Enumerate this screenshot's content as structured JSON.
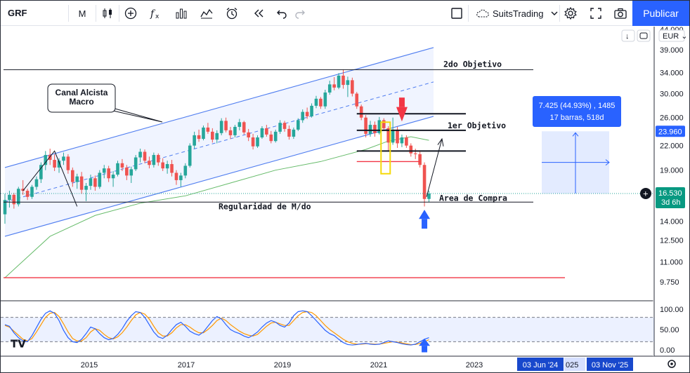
{
  "toolbar": {
    "symbol": "GRF",
    "interval": "M",
    "brand": "SuitsTrading",
    "publish_label": "Publicar"
  },
  "price_axis": {
    "currency": "EUR",
    "ticks": [
      "44.000",
      "39.000",
      "34.000",
      "30.000",
      "26.000",
      "22.000",
      "19.000",
      "14.000",
      "12.500",
      "11.000",
      "9.750"
    ],
    "current_price": "16.530",
    "countdown": "3d 6h",
    "target_price": "23.960"
  },
  "osc_axis": {
    "ticks": [
      "100.00",
      "50.00",
      "0.00"
    ]
  },
  "time_axis": {
    "ticks": [
      "2015",
      "2017",
      "2019",
      "2021",
      "2023"
    ],
    "range_start": "03 Jun '24",
    "range_partial": "025",
    "range_end": "03 Nov '25"
  },
  "annotations": {
    "callout_line1": "Canal Alcista",
    "callout_line2": "Macro",
    "second_target": "2do Objetivo",
    "first_target": "1er Objetivo",
    "buy_area": "Area de Compra",
    "regularity": "Regularidad de M/do",
    "measure_line1": "7.425 (44.93%) , 1485",
    "measure_line2": "17 barras, 518d"
  },
  "colors": {
    "up": "#26a69a",
    "down": "#ef5350",
    "channel": "#4f7df0",
    "ma": "#66bb6a",
    "stoch_k": "#2962ff",
    "stoch_d": "#ff9800",
    "accent": "#2962ff"
  },
  "chart_data": {
    "type": "candlestick",
    "candles": [
      [
        14.6,
        16.5,
        13.8,
        15.9
      ],
      [
        15.9,
        16.8,
        15.2,
        16.4
      ],
      [
        16.4,
        16.6,
        15.1,
        15.5
      ],
      [
        15.5,
        17.2,
        15.3,
        17.0
      ],
      [
        17.0,
        17.9,
        16.4,
        16.8
      ],
      [
        16.8,
        17.0,
        15.9,
        16.2
      ],
      [
        16.2,
        17.4,
        16.0,
        17.2
      ],
      [
        17.2,
        18.3,
        16.9,
        18.0
      ],
      [
        18.0,
        19.9,
        17.6,
        19.6
      ],
      [
        19.6,
        21.3,
        19.0,
        20.8
      ],
      [
        20.8,
        21.6,
        19.6,
        20.2
      ],
      [
        20.2,
        20.9,
        18.9,
        19.3
      ],
      [
        19.3,
        20.4,
        18.7,
        20.1
      ],
      [
        20.1,
        21.1,
        19.6,
        20.6
      ],
      [
        20.6,
        20.9,
        18.6,
        19.0
      ],
      [
        19.0,
        19.3,
        17.2,
        17.7
      ],
      [
        17.7,
        18.6,
        17.0,
        18.3
      ],
      [
        18.3,
        18.8,
        16.5,
        16.9
      ],
      [
        16.9,
        17.6,
        15.8,
        17.3
      ],
      [
        17.3,
        18.5,
        16.9,
        18.1
      ],
      [
        18.1,
        18.4,
        16.8,
        17.2
      ],
      [
        17.2,
        19.0,
        17.0,
        18.7
      ],
      [
        18.7,
        19.6,
        18.1,
        19.2
      ],
      [
        19.2,
        19.5,
        17.7,
        18.1
      ],
      [
        18.1,
        18.9,
        17.2,
        18.5
      ],
      [
        18.5,
        20.1,
        18.3,
        19.8
      ],
      [
        19.8,
        20.3,
        18.9,
        19.3
      ],
      [
        19.3,
        19.6,
        17.9,
        18.4
      ],
      [
        18.4,
        19.4,
        17.6,
        19.1
      ],
      [
        19.1,
        20.8,
        18.9,
        20.5
      ],
      [
        20.5,
        21.6,
        19.9,
        21.2
      ],
      [
        21.2,
        21.5,
        19.8,
        20.1
      ],
      [
        20.1,
        20.6,
        19.2,
        19.6
      ],
      [
        19.6,
        21.1,
        19.3,
        20.8
      ],
      [
        20.8,
        21.0,
        19.5,
        19.9
      ],
      [
        19.9,
        20.4,
        18.9,
        19.2
      ],
      [
        19.2,
        20.1,
        18.6,
        19.7
      ],
      [
        19.7,
        20.2,
        18.3,
        18.7
      ],
      [
        18.7,
        19.0,
        17.4,
        17.9
      ],
      [
        17.9,
        18.7,
        17.2,
        18.4
      ],
      [
        18.4,
        19.8,
        18.1,
        19.5
      ],
      [
        19.5,
        22.3,
        19.3,
        22.0
      ],
      [
        22.0,
        23.9,
        21.6,
        23.4
      ],
      [
        23.4,
        24.2,
        22.5,
        22.9
      ],
      [
        22.9,
        24.8,
        22.7,
        24.5
      ],
      [
        24.5,
        25.2,
        23.6,
        23.9
      ],
      [
        23.9,
        24.4,
        22.4,
        22.8
      ],
      [
        22.8,
        24.1,
        22.3,
        23.7
      ],
      [
        23.7,
        25.9,
        23.4,
        25.5
      ],
      [
        25.5,
        26.0,
        23.8,
        24.1
      ],
      [
        24.1,
        24.6,
        22.9,
        23.4
      ],
      [
        23.4,
        24.9,
        23.1,
        24.6
      ],
      [
        24.6,
        25.8,
        24.1,
        25.3
      ],
      [
        25.3,
        25.5,
        23.5,
        23.8
      ],
      [
        23.8,
        24.3,
        22.6,
        23.1
      ],
      [
        23.1,
        23.6,
        21.5,
        21.9
      ],
      [
        21.9,
        23.4,
        21.7,
        23.1
      ],
      [
        23.1,
        24.7,
        22.9,
        24.4
      ],
      [
        24.4,
        24.9,
        23.2,
        23.5
      ],
      [
        23.5,
        24.0,
        22.3,
        22.6
      ],
      [
        22.6,
        24.2,
        22.4,
        23.9
      ],
      [
        23.9,
        25.6,
        23.6,
        25.2
      ],
      [
        25.2,
        25.5,
        23.9,
        24.3
      ],
      [
        24.3,
        24.8,
        22.8,
        23.2
      ],
      [
        23.2,
        24.5,
        22.9,
        24.2
      ],
      [
        24.2,
        25.9,
        24.0,
        25.6
      ],
      [
        25.6,
        27.3,
        25.2,
        26.9
      ],
      [
        26.9,
        27.6,
        25.8,
        26.2
      ],
      [
        26.2,
        28.3,
        26.0,
        27.9
      ],
      [
        27.9,
        29.6,
        27.5,
        29.1
      ],
      [
        29.1,
        29.4,
        27.4,
        27.8
      ],
      [
        27.8,
        30.7,
        27.4,
        30.2
      ],
      [
        30.2,
        32.4,
        29.8,
        31.7
      ],
      [
        31.7,
        33.1,
        30.6,
        31.1
      ],
      [
        31.1,
        33.9,
        30.8,
        33.4
      ],
      [
        33.4,
        34.6,
        30.9,
        31.6
      ],
      [
        31.6,
        33.2,
        29.4,
        32.5
      ],
      [
        32.5,
        33.0,
        29.5,
        30.0
      ],
      [
        30.0,
        30.3,
        27.4,
        27.8
      ],
      [
        27.8,
        28.1,
        25.6,
        26.0
      ],
      [
        26.0,
        26.4,
        23.1,
        23.6
      ],
      [
        23.6,
        25.5,
        23.2,
        24.9
      ],
      [
        24.9,
        25.4,
        23.2,
        23.7
      ],
      [
        23.7,
        26.1,
        23.5,
        25.6
      ],
      [
        25.6,
        25.9,
        24.0,
        24.4
      ],
      [
        24.4,
        24.7,
        21.2,
        22.4
      ],
      [
        22.4,
        26.0,
        22.1,
        24.2
      ],
      [
        24.2,
        24.6,
        21.7,
        22.3
      ],
      [
        22.3,
        23.5,
        21.8,
        23.1
      ],
      [
        23.1,
        23.4,
        21.7,
        22.0
      ],
      [
        22.0,
        22.3,
        20.6,
        21.0
      ],
      [
        21.0,
        21.6,
        20.3,
        20.9
      ],
      [
        20.9,
        21.2,
        19.3,
        19.6
      ],
      [
        19.6,
        19.9,
        15.3,
        16.0
      ],
      [
        16.0,
        16.8,
        15.7,
        16.53
      ]
    ],
    "ma": [
      {
        "i": 0,
        "v": 10.0
      },
      {
        "i": 10,
        "v": 12.8
      },
      {
        "i": 20,
        "v": 14.5
      },
      {
        "i": 30,
        "v": 15.6
      },
      {
        "i": 40,
        "v": 16.3
      },
      {
        "i": 50,
        "v": 17.6
      },
      {
        "i": 60,
        "v": 19.0
      },
      {
        "i": 70,
        "v": 20.0
      },
      {
        "i": 80,
        "v": 21.5
      },
      {
        "i": 85,
        "v": 22.6
      },
      {
        "i": 90,
        "v": 23.2
      },
      {
        "i": 94,
        "v": 22.7
      }
    ],
    "stoch_k": [
      62,
      58,
      42,
      30,
      22,
      20,
      35,
      55,
      75,
      90,
      96,
      90,
      72,
      48,
      30,
      20,
      18,
      26,
      40,
      56,
      52,
      40,
      30,
      25,
      28,
      38,
      52,
      70,
      84,
      94,
      92,
      80,
      62,
      44,
      32,
      28,
      36,
      50,
      62,
      68,
      58,
      46,
      40,
      36,
      44,
      58,
      72,
      82,
      76,
      62,
      50,
      44,
      40,
      34,
      30,
      36,
      44,
      56,
      66,
      72,
      68,
      60,
      56,
      66,
      84,
      94,
      96,
      94,
      84,
      72,
      60,
      48,
      40,
      35,
      26,
      18,
      13,
      12,
      13,
      15,
      16,
      14,
      13,
      14,
      18,
      22,
      20,
      18,
      15,
      13,
      12,
      14,
      20,
      26,
      30
    ],
    "stoch_d": [
      60,
      56,
      46,
      36,
      26,
      22,
      28,
      44,
      62,
      80,
      90,
      92,
      82,
      64,
      44,
      28,
      22,
      22,
      30,
      44,
      52,
      48,
      38,
      30,
      27,
      32,
      42,
      56,
      72,
      86,
      92,
      88,
      76,
      58,
      42,
      34,
      34,
      42,
      54,
      62,
      62,
      56,
      48,
      42,
      42,
      50,
      60,
      72,
      78,
      72,
      62,
      54,
      46,
      40,
      36,
      34,
      38,
      48,
      58,
      66,
      68,
      64,
      60,
      60,
      72,
      84,
      92,
      94,
      92,
      84,
      72,
      60,
      50,
      42,
      34,
      26,
      20,
      16,
      14,
      14,
      15,
      15,
      14,
      14,
      16,
      18,
      20,
      19,
      17,
      15,
      13,
      13,
      16,
      20,
      25
    ],
    "channel": {
      "upper_start": 19.3,
      "lower_start": 12.8
    },
    "levels": {
      "regularity": 15.7,
      "second_target": 34.6,
      "red_support": 10.0
    },
    "x_ticks": [
      "2015",
      "2017",
      "2019",
      "2021",
      "2023"
    ]
  }
}
